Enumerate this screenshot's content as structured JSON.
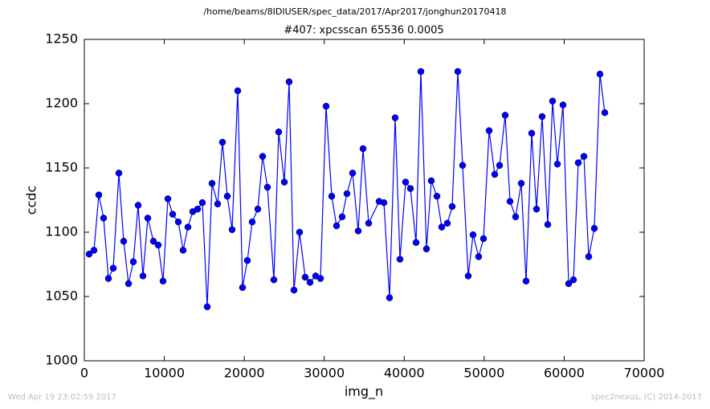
{
  "chart_data": {
    "type": "line",
    "suptitle": "/home/beams/8IDIUSER/spec_data/2017/Apr2017/jonghun20170418",
    "title": "#407: xpcsscan 65536 0.0005",
    "xlabel": "img_n",
    "ylabel": "ccdc",
    "color": "#0000ff",
    "x": [
      603,
      1205,
      1808,
      2410,
      3013,
      3615,
      4318,
      4921,
      5524,
      6126,
      6729,
      7331,
      7934,
      8637,
      9240,
      9842,
      10445,
      11047,
      11750,
      12353,
      12955,
      13558,
      14161,
      14763,
      15366,
      15968,
      16671,
      17274,
      17876,
      18479,
      19182,
      19785,
      20387,
      20990,
      21693,
      22295,
      22898,
      23701,
      24304,
      25007,
      25610,
      26212,
      26915,
      27618,
      28221,
      28924,
      29526,
      30229,
      30932,
      31535,
      32238,
      32841,
      33544,
      34247,
      34849,
      35552,
      36858,
      37460,
      38163,
      38866,
      39469,
      40172,
      40775,
      41478,
      42080,
      42783,
      43386,
      44089,
      44691,
      45394,
      45997,
      46700,
      47302,
      48005,
      48608,
      49311,
      49913,
      50616,
      51319,
      51922,
      52625,
      53227,
      53930,
      54633,
      55236,
      55939,
      56541,
      57244,
      57947,
      58550,
      59153,
      59856,
      60559,
      61161,
      61764,
      62467,
      63069,
      63772,
      64475,
      65078
    ],
    "values": [
      1083,
      1086,
      1129,
      1111,
      1064,
      1072,
      1146,
      1093,
      1060,
      1077,
      1121,
      1066,
      1111,
      1093,
      1090,
      1062,
      1126,
      1114,
      1108,
      1086,
      1104,
      1116,
      1118,
      1123,
      1042,
      1138,
      1122,
      1170,
      1128,
      1102,
      1210,
      1057,
      1078,
      1108,
      1118,
      1159,
      1135,
      1063,
      1178,
      1139,
      1217,
      1055,
      1100,
      1065,
      1061,
      1066,
      1064,
      1198,
      1128,
      1105,
      1112,
      1130,
      1146,
      1101,
      1165,
      1107,
      1124,
      1123,
      1049,
      1189,
      1079,
      1139,
      1134,
      1092,
      1225,
      1087,
      1140,
      1128,
      1104,
      1107,
      1120,
      1225,
      1152,
      1066,
      1098,
      1081,
      1095,
      1179,
      1145,
      1152,
      1191,
      1124,
      1112,
      1138,
      1062,
      1177,
      1118,
      1190,
      1106,
      1202,
      1153,
      1199,
      1060,
      1063,
      1154,
      1159,
      1081,
      1103,
      1223,
      1193
    ],
    "xlim": [
      0,
      70000
    ],
    "xticks": [
      0,
      10000,
      20000,
      30000,
      40000,
      50000,
      60000,
      70000
    ],
    "ylim": [
      1000,
      1250
    ],
    "yticks": [
      1000,
      1050,
      1100,
      1150,
      1200,
      1250
    ]
  },
  "footer": {
    "left": "Wed Apr 19 23:02:59 2017",
    "right": "spec2nexus, (C) 2014-2017"
  }
}
